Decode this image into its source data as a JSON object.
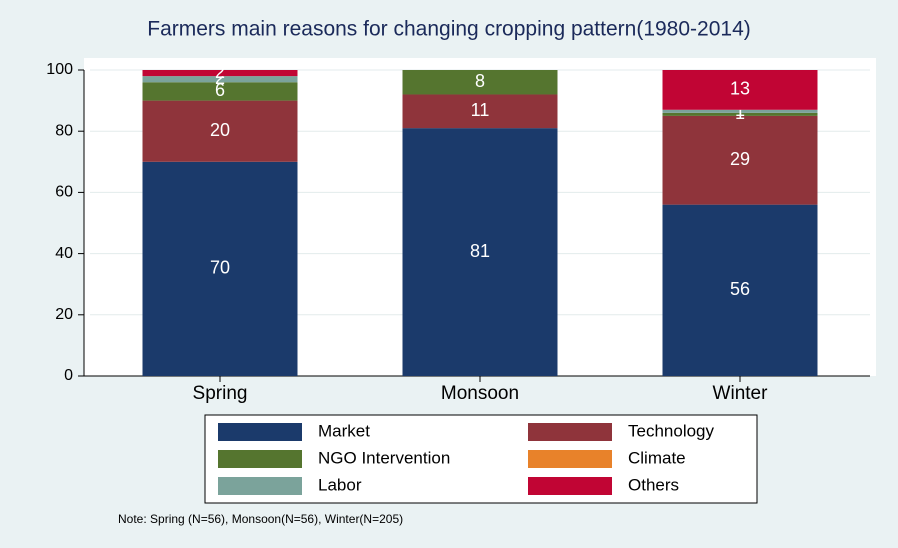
{
  "chart_data": {
    "type": "stacked_bar",
    "title": "Farmers main reasons for changing cropping pattern(1980-2014)",
    "note": "Note: Spring (N=56), Monsoon(N=56), Winter(N=205)",
    "categories": [
      "Spring",
      "Monsoon",
      "Winter"
    ],
    "series": [
      {
        "name": "Market",
        "color": "#1b3a6b",
        "values": [
          70,
          81,
          56
        ]
      },
      {
        "name": "Technology",
        "color": "#8f343b",
        "values": [
          20,
          11,
          29
        ]
      },
      {
        "name": "NGO Intervention",
        "color": "#55752f",
        "values": [
          6,
          8,
          1
        ]
      },
      {
        "name": "Climate",
        "color": "#e8822a",
        "values": [
          0,
          0,
          0
        ]
      },
      {
        "name": "Labor",
        "color": "#7ba39b",
        "values": [
          2,
          0,
          1
        ]
      },
      {
        "name": "Others",
        "color": "#c10534",
        "values": [
          2,
          0,
          13
        ]
      }
    ],
    "ylim": [
      0,
      100
    ],
    "yticks": [
      0,
      20,
      40,
      60,
      80,
      100
    ],
    "grid": true
  }
}
